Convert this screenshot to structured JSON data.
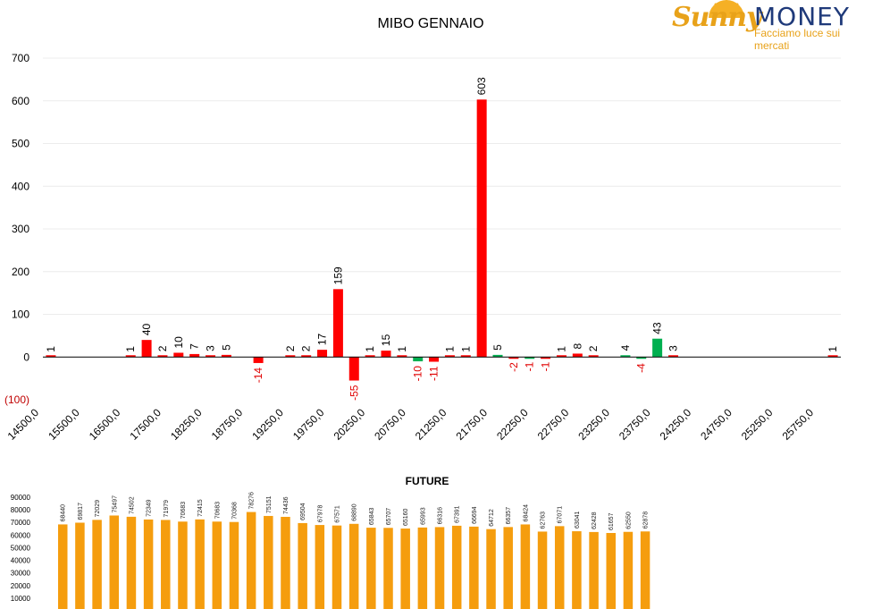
{
  "logo": {
    "word1": "Sunny",
    "word2": "MONEY",
    "tagline": "Facciamo luce sui mercati",
    "colors": {
      "sunny": "#e8a21a",
      "money": "#1f3a7a"
    }
  },
  "chart_data": [
    {
      "type": "bar",
      "title": "MIBO GENNAIO",
      "x_tick_labels": [
        "14500,0",
        "15500,0",
        "16500,0",
        "17500,0",
        "18250,0",
        "18750,0",
        "19250,0",
        "19750,0",
        "20250,0",
        "20750,0",
        "21250,0",
        "21750,0",
        "22250,0",
        "22750,0",
        "23250,0",
        "23750,0",
        "24250,0",
        "24750,0",
        "25250,0",
        "25750,0"
      ],
      "y_tick_labels": [
        "(100)",
        "0",
        "100",
        "200",
        "300",
        "400",
        "500",
        "600",
        "700"
      ],
      "ylim": [
        -100,
        700
      ],
      "grid": true,
      "colors": {
        "red": "#ff0000",
        "green": "#00b050",
        "negative_label": "#e00000",
        "negative_tick": "#c00000"
      },
      "bars": [
        {
          "label": "1",
          "value": 1,
          "color": "red"
        },
        {
          "label": "",
          "value": 0,
          "color": "red"
        },
        {
          "label": "",
          "value": 0,
          "color": "red"
        },
        {
          "label": "",
          "value": 0,
          "color": "red"
        },
        {
          "label": "",
          "value": 0,
          "color": "red"
        },
        {
          "label": "1",
          "value": 1,
          "color": "red"
        },
        {
          "label": "40",
          "value": 40,
          "color": "red"
        },
        {
          "label": "2",
          "value": 2,
          "color": "red"
        },
        {
          "label": "10",
          "value": 10,
          "color": "red"
        },
        {
          "label": "7",
          "value": 7,
          "color": "red"
        },
        {
          "label": "3",
          "value": 3,
          "color": "red"
        },
        {
          "label": "5",
          "value": 5,
          "color": "red"
        },
        {
          "label": "",
          "value": 0,
          "color": "red"
        },
        {
          "label": "-14",
          "value": -14,
          "color": "red"
        },
        {
          "label": "",
          "value": 0,
          "color": "red"
        },
        {
          "label": "2",
          "value": 2,
          "color": "red"
        },
        {
          "label": "2",
          "value": 2,
          "color": "red"
        },
        {
          "label": "17",
          "value": 17,
          "color": "red"
        },
        {
          "label": "159",
          "value": 159,
          "color": "red"
        },
        {
          "label": "-55",
          "value": -55,
          "color": "red"
        },
        {
          "label": "1",
          "value": 1,
          "color": "red"
        },
        {
          "label": "15",
          "value": 15,
          "color": "red"
        },
        {
          "label": "1",
          "value": 1,
          "color": "red"
        },
        {
          "label": "-10",
          "value": -10,
          "color": "green"
        },
        {
          "label": "-11",
          "value": -11,
          "color": "red"
        },
        {
          "label": "1",
          "value": 1,
          "color": "red"
        },
        {
          "label": "1",
          "value": 1,
          "color": "red"
        },
        {
          "label": "603",
          "value": 603,
          "color": "red"
        },
        {
          "label": "5",
          "value": 5,
          "color": "green"
        },
        {
          "label": "-2",
          "value": -2,
          "color": "red"
        },
        {
          "label": "-1",
          "value": -1,
          "color": "green"
        },
        {
          "label": "-1",
          "value": -1,
          "color": "red"
        },
        {
          "label": "1",
          "value": 1,
          "color": "red"
        },
        {
          "label": "8",
          "value": 8,
          "color": "red"
        },
        {
          "label": "2",
          "value": 2,
          "color": "red"
        },
        {
          "label": "",
          "value": 0,
          "color": "red"
        },
        {
          "label": "4",
          "value": 4,
          "color": "green"
        },
        {
          "label": "-4",
          "value": -4,
          "color": "green"
        },
        {
          "label": "43",
          "value": 43,
          "color": "green"
        },
        {
          "label": "3",
          "value": 3,
          "color": "red"
        },
        {
          "label": "",
          "value": 0,
          "color": "red"
        },
        {
          "label": "",
          "value": 0,
          "color": "red"
        },
        {
          "label": "",
          "value": 0,
          "color": "red"
        },
        {
          "label": "",
          "value": 0,
          "color": "red"
        },
        {
          "label": "",
          "value": 0,
          "color": "red"
        },
        {
          "label": "",
          "value": 0,
          "color": "red"
        },
        {
          "label": "",
          "value": 0,
          "color": "red"
        },
        {
          "label": "",
          "value": 0,
          "color": "red"
        },
        {
          "label": "",
          "value": 0,
          "color": "red"
        },
        {
          "label": "1",
          "value": 1,
          "color": "red"
        }
      ]
    },
    {
      "type": "bar",
      "title": "FUTURE",
      "y_tick_labels": [
        "10000",
        "20000",
        "30000",
        "40000",
        "50000",
        "60000",
        "70000",
        "80000",
        "90000"
      ],
      "ylim": [
        0,
        90000
      ],
      "colors": {
        "bar": "#f59d0e"
      },
      "values": [
        68440,
        69817,
        72029,
        75497,
        74502,
        72349,
        71979,
        70683,
        72415,
        70683,
        70368,
        78276,
        75151,
        74436,
        69504,
        67978,
        67571,
        68890,
        65843,
        65707,
        65160,
        65993,
        66316,
        67391,
        66694,
        64712,
        66357,
        68424,
        62763,
        67071,
        63041,
        62428,
        61657,
        62550,
        62878
      ]
    }
  ]
}
